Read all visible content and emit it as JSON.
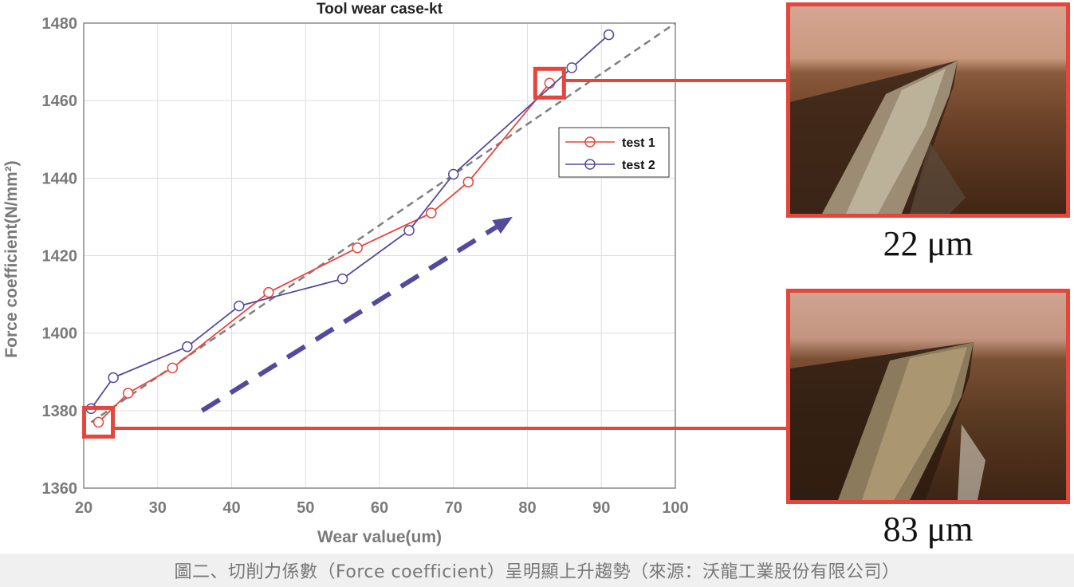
{
  "chart_data": {
    "type": "line",
    "title": "Tool wear case-kt",
    "xlabel": "Wear value(um)",
    "ylabel": "Force coefficient(N/mm²)",
    "xlim": [
      20,
      100
    ],
    "ylim": [
      1360,
      1480
    ],
    "xticks": [
      20,
      30,
      40,
      50,
      60,
      70,
      80,
      90,
      100
    ],
    "yticks": [
      1360,
      1380,
      1400,
      1420,
      1440,
      1460,
      1480
    ],
    "grid": true,
    "legend_position": "right",
    "series": [
      {
        "name": "test 1",
        "color": "#e8453c",
        "marker": "circle",
        "x": [
          22,
          26,
          32,
          45,
          57,
          67,
          72,
          83
        ],
        "y": [
          1377,
          1384.5,
          1391,
          1410.5,
          1422,
          1431,
          1439,
          1464.5
        ]
      },
      {
        "name": "test 2",
        "color": "#544a9c",
        "marker": "circle",
        "x": [
          21,
          24,
          34,
          41,
          55,
          64,
          70,
          86,
          91
        ],
        "y": [
          1380.5,
          1388.5,
          1396.5,
          1407,
          1414,
          1426.5,
          1441,
          1468.5,
          1477
        ]
      }
    ],
    "trend_line": {
      "color": "#7f7f7f",
      "style": "dashed",
      "x": [
        21,
        100
      ],
      "y": [
        1377,
        1480
      ]
    },
    "trend_arrow": {
      "color": "#544a9c",
      "x": [
        36,
        78
      ],
      "y": [
        1380,
        1430
      ]
    },
    "highlights": [
      {
        "x": 22,
        "y": 1377,
        "color": "#e2463c"
      },
      {
        "x": 83,
        "y": 1464.5,
        "color": "#e2463c"
      }
    ]
  },
  "photos": {
    "top_label": "22 μm",
    "bottom_label": "83 μm"
  },
  "caption": "圖二、切削力係數（Force coefficient）呈明顯上升趨勢（來源：沃龍工業股份有限公司）"
}
